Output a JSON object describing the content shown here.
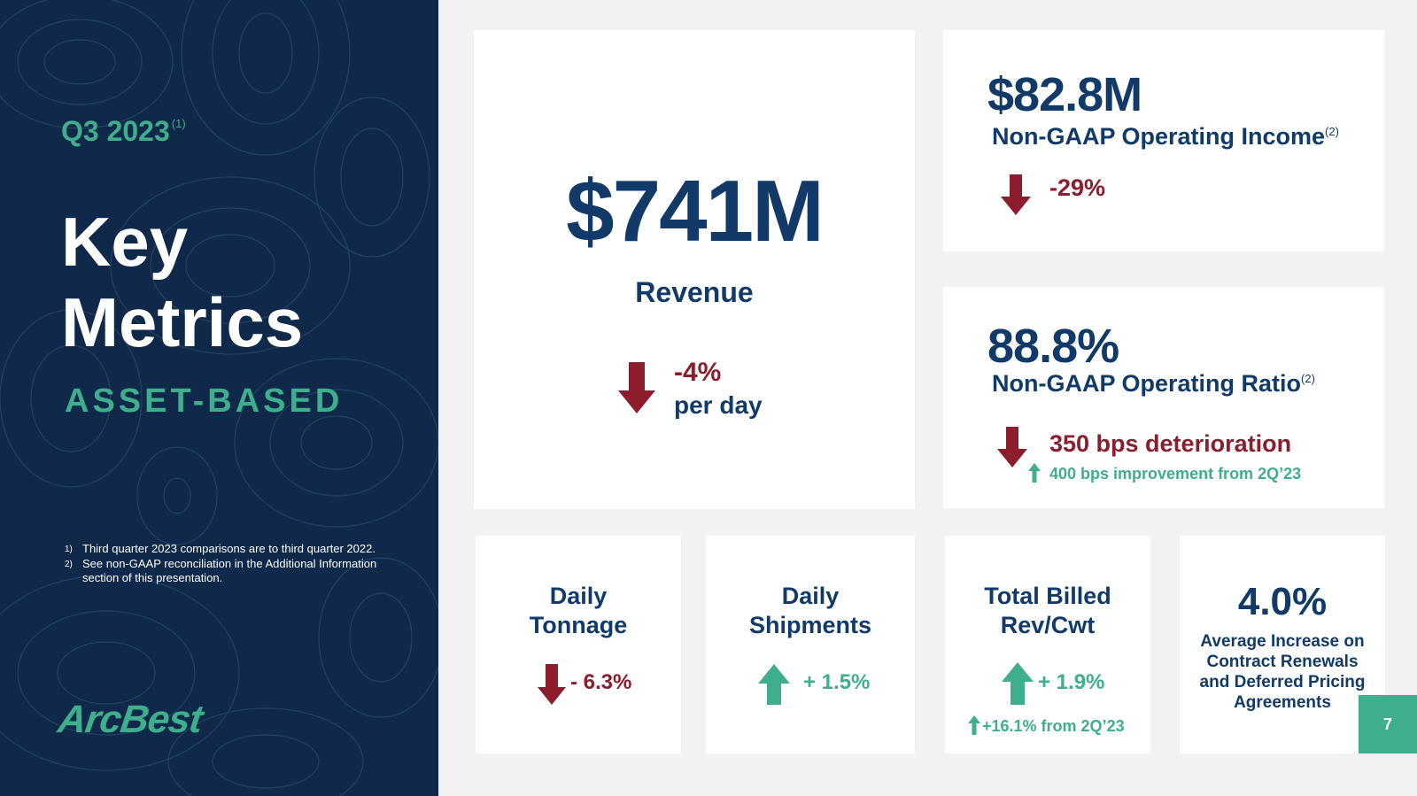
{
  "sidebar": {
    "period": "Q3 2023",
    "period_note": "(1)",
    "title_line1": "Key",
    "title_line2": "Metrics",
    "segment": "ASSET-BASED",
    "footnotes": [
      {
        "mark": "1)",
        "text": "Third quarter 2023 comparisons are to third quarter 2022."
      },
      {
        "mark": "2)",
        "text": "See non-GAAP reconciliation in the Additional Information section of this presentation."
      }
    ],
    "logo": "ArcBest"
  },
  "revenue": {
    "value": "$741M",
    "label": "Revenue",
    "change": "-4%",
    "change_sub": "per day",
    "direction": "down"
  },
  "operating_income": {
    "value": "$82.8M",
    "label": "Non-GAAP Operating Income",
    "note": "(2)",
    "change": "-29%",
    "direction": "down"
  },
  "operating_ratio": {
    "value": "88.8%",
    "label": "Non-GAAP Operating Ratio",
    "note": "(2)",
    "change": "350 bps deterioration",
    "direction": "down",
    "sub_change": "400 bps improvement from 2Q’23",
    "sub_direction": "up"
  },
  "small_metrics": [
    {
      "line1": "Daily",
      "line2": "Tonnage",
      "change": "- 6.3%",
      "direction": "down"
    },
    {
      "line1": "Daily",
      "line2": "Shipments",
      "change": "+ 1.5%",
      "direction": "up"
    },
    {
      "line1": "Total Billed",
      "line2": "Rev/Cwt",
      "change": "+ 1.9%",
      "direction": "up",
      "sub_change": "+16.1% from 2Q’23"
    }
  ],
  "contract": {
    "value": "4.0%",
    "label_lines": [
      "Average Increase on",
      "Contract Renewals",
      "and Deferred Pricing",
      "Agreements"
    ]
  },
  "page_number": "7",
  "colors": {
    "navy": "#123a68",
    "panel": "#10294a",
    "teal": "#3fae8c",
    "red": "#8b1d2c",
    "background": "#f2f2f2"
  }
}
